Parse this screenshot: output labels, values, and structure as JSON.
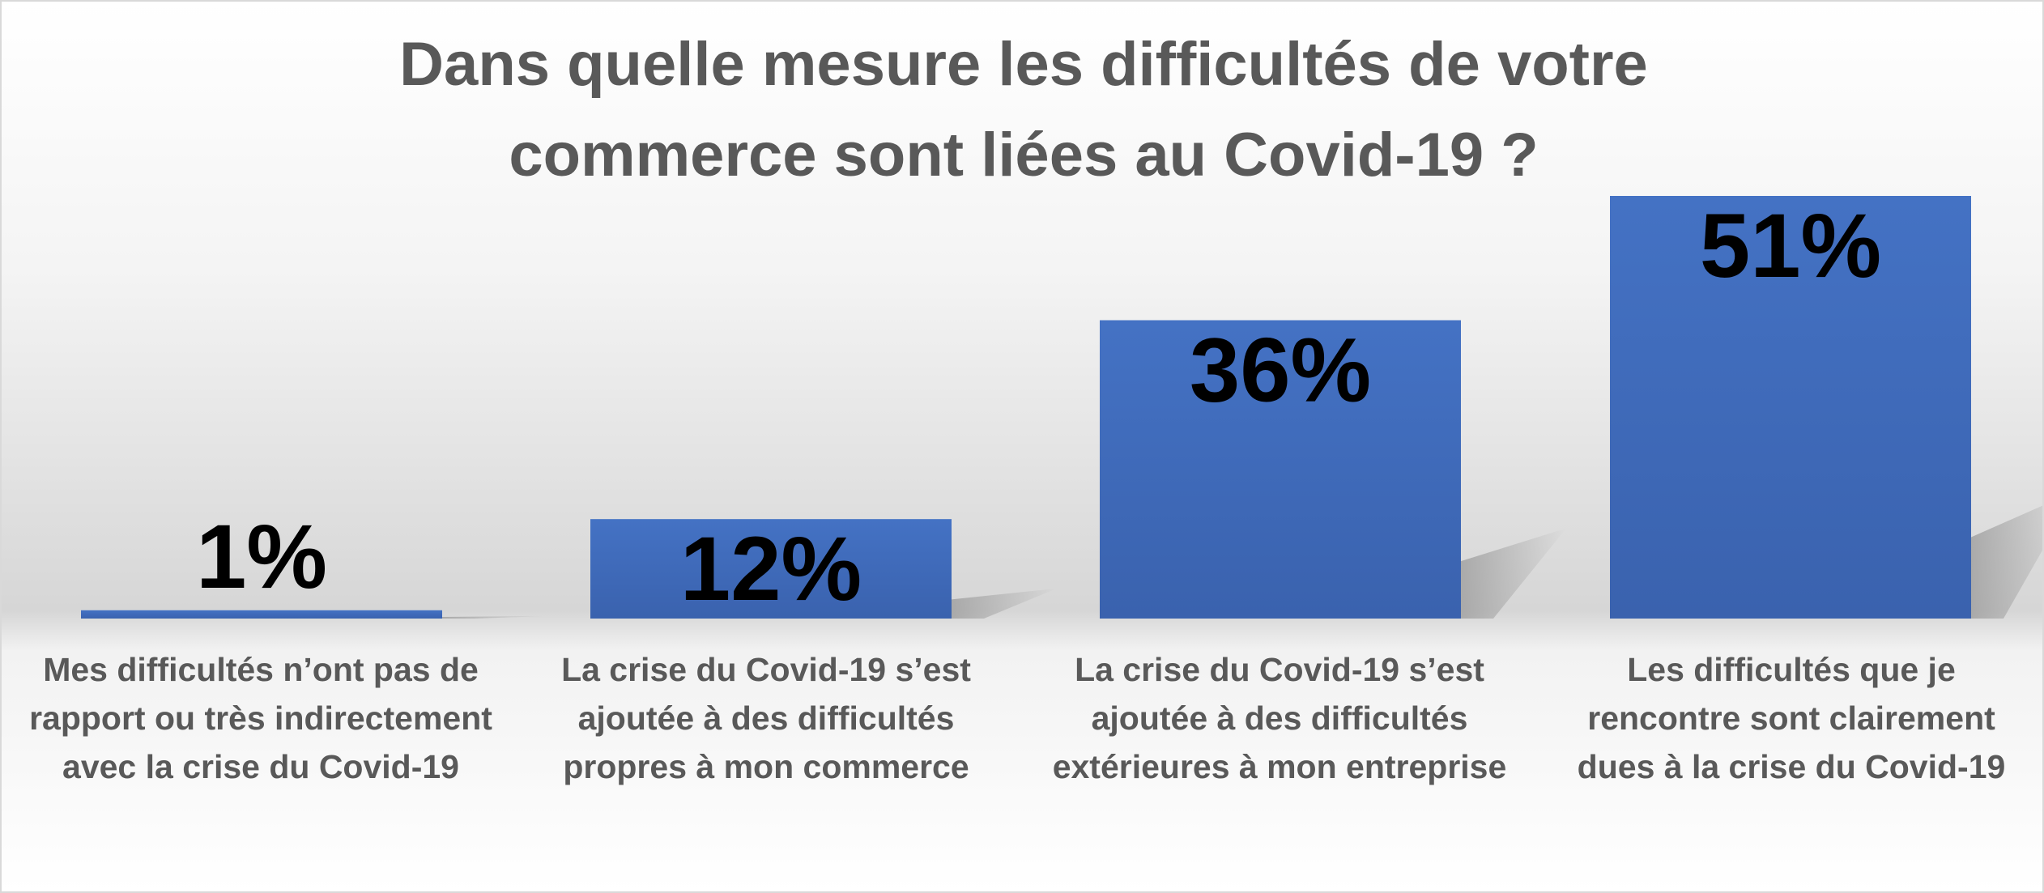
{
  "chart_data": {
    "type": "bar",
    "title_lines": [
      "Dans quelle mesure les difficultés de votre",
      "commerce sont liées au Covid-19 ?"
    ],
    "categories": [
      [
        "Mes difficultés n’ont pas de",
        "rapport ou très indirectement",
        "avec la crise du Covid-19"
      ],
      [
        "La crise du Covid-19 s’est",
        "ajoutée à des difficultés",
        "propres à mon commerce"
      ],
      [
        "La crise du Covid-19 s’est",
        "ajoutée à des difficultés",
        "extérieures à mon entreprise"
      ],
      [
        "Les difficultés que je",
        "rencontre sont clairement",
        "dues à la crise du Covid-19"
      ]
    ],
    "values": [
      1,
      12,
      36,
      51
    ],
    "data_labels": [
      "1%",
      "12%",
      "36%",
      "51%"
    ],
    "ylim": [
      0,
      51
    ],
    "bar_color": "#4472C4",
    "label_color": "#000000",
    "text_color": "#595959"
  }
}
